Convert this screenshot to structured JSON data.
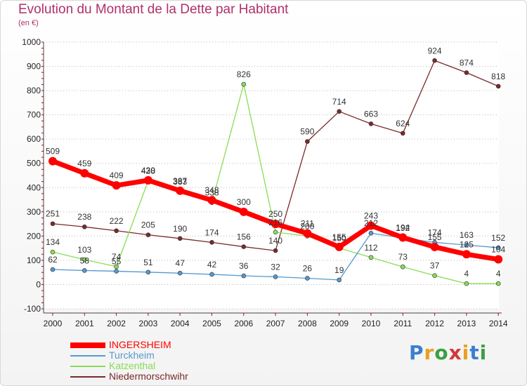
{
  "page": {
    "title": "Evolution du Montant de la Dette par Habitant",
    "unit": "(en €)",
    "brand": "Proxiti"
  },
  "colors": {
    "title": "#b0306a",
    "grid": "#bbbbbb",
    "axis_tick_red": "#cc0000",
    "background": "#ffffff"
  },
  "chart_data": {
    "type": "line",
    "title": "Evolution du Montant de la Dette par Habitant",
    "ylabel": "(en €)",
    "xlabel": "",
    "ylim": [
      -100,
      1000
    ],
    "yticks": [
      -100,
      0,
      100,
      200,
      300,
      400,
      500,
      600,
      700,
      800,
      900,
      1000
    ],
    "x": [
      "2000",
      "2001",
      "2002",
      "2003",
      "2004",
      "2005",
      "2006",
      "2007",
      "2008",
      "2009",
      "2010",
      "2011",
      "2012",
      "2013",
      "2014"
    ],
    "grid": "horizontal dashed",
    "legend_position": "bottom-left",
    "series": [
      {
        "name": "INGERSHEIM",
        "color": "#ff0000",
        "values": [
          509,
          459,
          409,
          430,
          387,
          348,
          300,
          250,
          211,
          155,
          243,
          194,
          155,
          125,
          104
        ]
      },
      {
        "name": "Turckheim",
        "color": "#5599cc",
        "values": [
          62,
          58,
          55,
          51,
          47,
          42,
          36,
          32,
          26,
          19,
          212,
          192,
          174,
          163,
          152
        ]
      },
      {
        "name": "Katzenthal",
        "color": "#88dd55",
        "values": [
          134,
          103,
          74,
          428,
          383,
          338,
          826,
          216,
          200,
          150,
          112,
          73,
          37,
          4,
          4
        ]
      },
      {
        "name": "Niedermorschwihr",
        "color": "#7a2a2a",
        "values": [
          251,
          238,
          222,
          205,
          190,
          174,
          156,
          140,
          590,
          714,
          663,
          624,
          924,
          874,
          818
        ]
      }
    ]
  }
}
